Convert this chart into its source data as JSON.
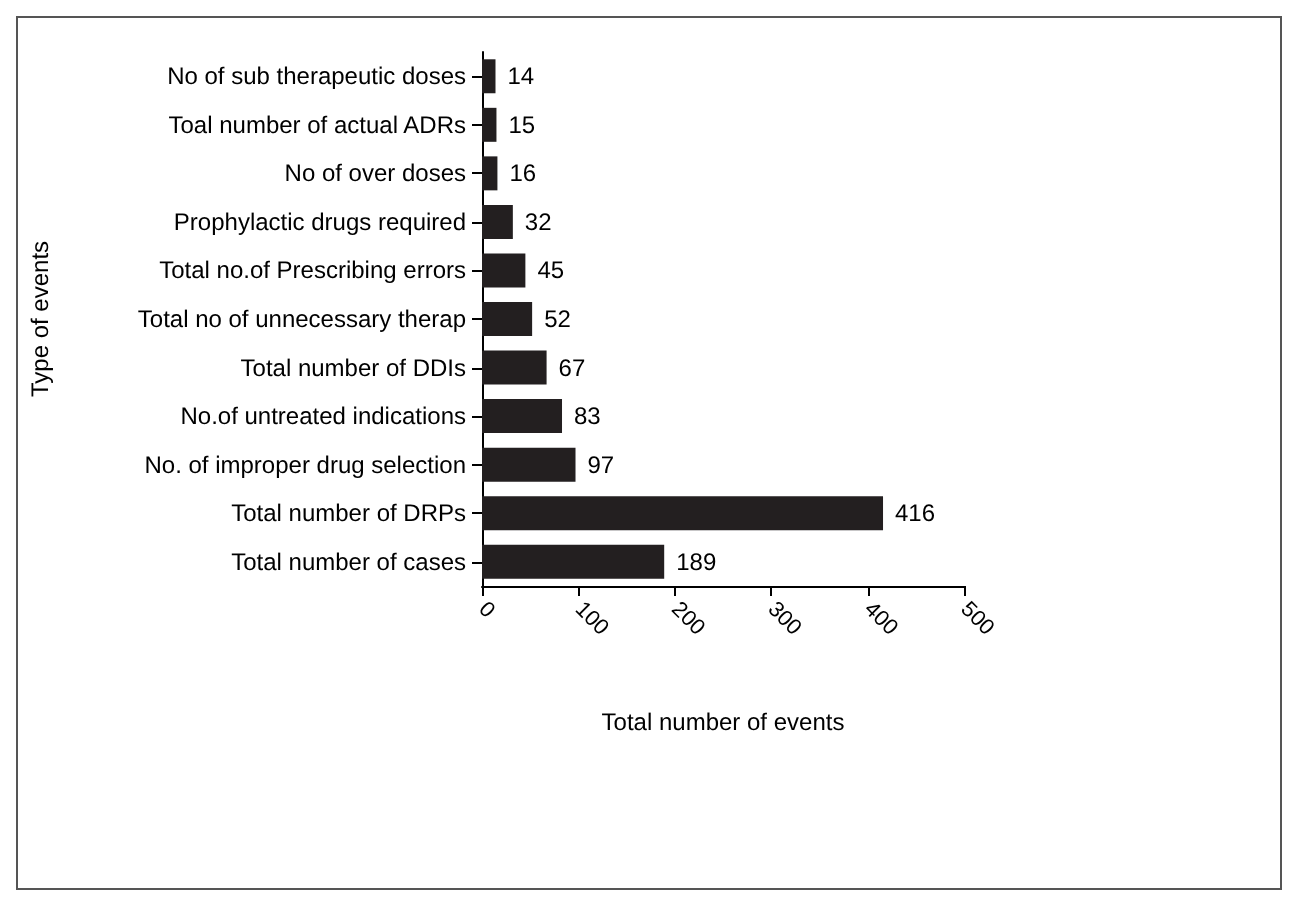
{
  "chart_data": {
    "type": "bar",
    "orientation": "horizontal",
    "xlabel": "Total number of events",
    "ylabel": "Type of events",
    "categories": [
      "No of sub therapeutic doses",
      "Toal number of actual ADRs",
      "No of over doses",
      "Prophylactic drugs required",
      "Total no.of Prescribing errors",
      "Total no of unnecessary therap",
      "Total number of DDIs",
      "No.of untreated indications",
      "No. of improper drug selection",
      "Total number of DRPs",
      "Total number of cases"
    ],
    "values": [
      14,
      15,
      16,
      32,
      45,
      52,
      67,
      83,
      97,
      416,
      189
    ],
    "color": "#231f20",
    "xlim": [
      0,
      500
    ],
    "xticks": [
      0,
      100,
      200,
      300,
      400,
      500
    ],
    "data_labels": true,
    "grid": false
  }
}
